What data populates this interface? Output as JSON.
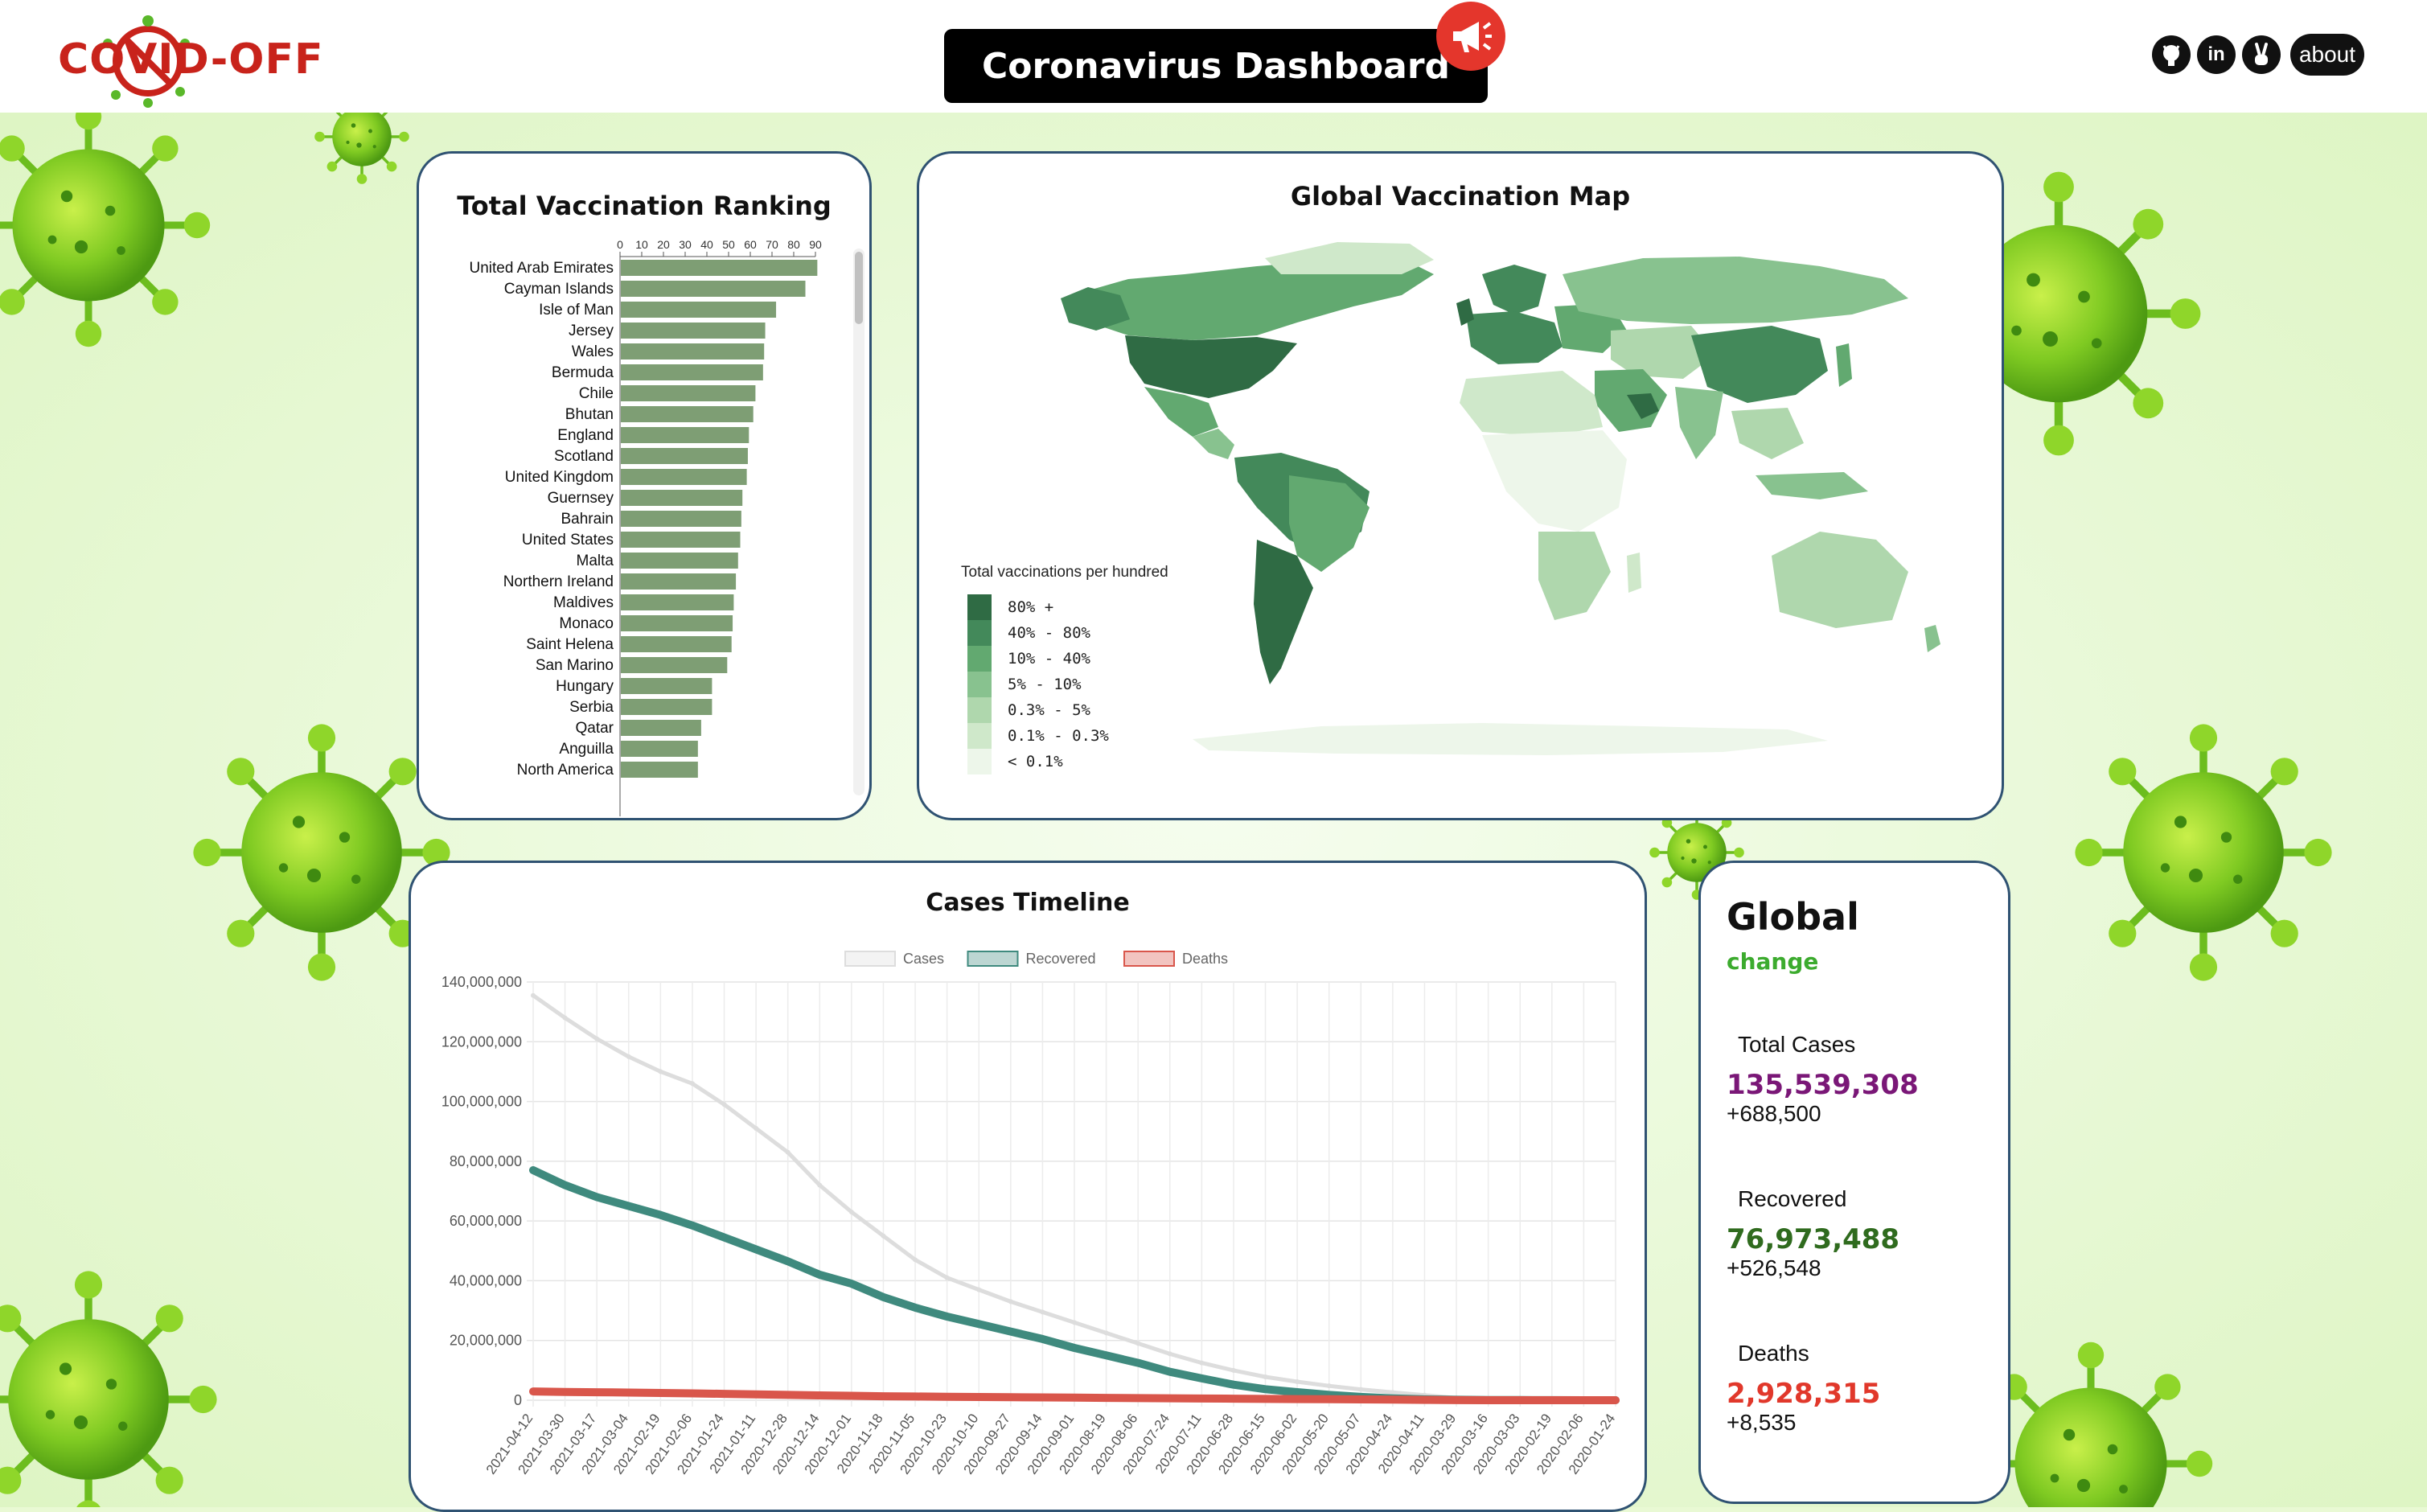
{
  "header": {
    "logo_text": "COVID-OFF",
    "title": "Coronavirus Dashboard",
    "icons": [
      "github-icon",
      "linkedin-icon",
      "peace-hand-icon"
    ],
    "linkedin_label": "in",
    "about_label": "about"
  },
  "ranking": {
    "title": "Total Vaccination Ranking",
    "axis_ticks": [
      "0",
      "10",
      "20",
      "30",
      "40",
      "50",
      "60",
      "70",
      "80",
      "90"
    ],
    "bar_color": "#7e9e74",
    "items": [
      {
        "label": "United Arab Emirates",
        "value": 90.5
      },
      {
        "label": "Cayman Islands",
        "value": 85
      },
      {
        "label": "Isle of Man",
        "value": 71.5
      },
      {
        "label": "Jersey",
        "value": 66.5
      },
      {
        "label": "Wales",
        "value": 66
      },
      {
        "label": "Bermuda",
        "value": 65.5
      },
      {
        "label": "Chile",
        "value": 62
      },
      {
        "label": "Bhutan",
        "value": 61
      },
      {
        "label": "England",
        "value": 59
      },
      {
        "label": "Scotland",
        "value": 58.5
      },
      {
        "label": "United Kingdom",
        "value": 58
      },
      {
        "label": "Guernsey",
        "value": 56
      },
      {
        "label": "Bahrain",
        "value": 55.5
      },
      {
        "label": "United States",
        "value": 55
      },
      {
        "label": "Malta",
        "value": 54
      },
      {
        "label": "Northern Ireland",
        "value": 53
      },
      {
        "label": "Maldives",
        "value": 52
      },
      {
        "label": "Monaco",
        "value": 51.5
      },
      {
        "label": "Saint Helena",
        "value": 51
      },
      {
        "label": "San Marino",
        "value": 49
      },
      {
        "label": "Hungary",
        "value": 42
      },
      {
        "label": "Serbia",
        "value": 42
      },
      {
        "label": "Qatar",
        "value": 37
      },
      {
        "label": "Anguilla",
        "value": 35.5
      },
      {
        "label": "North America",
        "value": 35.5
      }
    ]
  },
  "map": {
    "title": "Global Vaccination Map",
    "legend_title": "Total vaccinations per hundred",
    "legend": [
      {
        "label": "80% +",
        "color": "#2f6b44"
      },
      {
        "label": "40% - 80%",
        "color": "#43895a"
      },
      {
        "label": "10% - 40%",
        "color": "#62a970"
      },
      {
        "label": "5% - 10%",
        "color": "#88c28f"
      },
      {
        "label": "0.3% - 5%",
        "color": "#afd7ad"
      },
      {
        "label": "0.1% - 0.3%",
        "color": "#cfe8ca"
      },
      {
        "label": "< 0.1%",
        "color": "#edf6ea"
      }
    ]
  },
  "timeline": {
    "title": "Cases Timeline",
    "chart_data": {
      "type": "line",
      "title": "Cases Timeline",
      "ylim": [
        0,
        140000000
      ],
      "yticks": [
        "140,000,000",
        "120,000,000",
        "100,000,000",
        "80,000,000",
        "60,000,000",
        "40,000,000",
        "20,000,000",
        "0"
      ],
      "x": [
        "2021-04-12",
        "2021-03-30",
        "2021-03-17",
        "2021-03-04",
        "2021-02-19",
        "2021-02-06",
        "2021-01-24",
        "2021-01-11",
        "2020-12-28",
        "2020-12-14",
        "2020-12-01",
        "2020-11-18",
        "2020-11-05",
        "2020-10-23",
        "2020-10-10",
        "2020-09-27",
        "2020-09-14",
        "2020-09-01",
        "2020-08-19",
        "2020-08-06",
        "2020-07-24",
        "2020-07-11",
        "2020-06-28",
        "2020-06-15",
        "2020-06-02",
        "2020-05-20",
        "2020-05-07",
        "2020-04-24",
        "2020-04-11",
        "2020-03-29",
        "2020-03-16",
        "2020-03-03",
        "2020-02-19",
        "2020-02-06",
        "2020-01-24"
      ],
      "series": [
        {
          "name": "Cases",
          "color": "#dddddd",
          "values": [
            135500000,
            128000000,
            121000000,
            115000000,
            110000000,
            106000000,
            99000000,
            91000000,
            83000000,
            72000000,
            63000000,
            55000000,
            47000000,
            41000000,
            37000000,
            33000000,
            29500000,
            26000000,
            22500000,
            19000000,
            15500000,
            12500000,
            10000000,
            7800000,
            6200000,
            4800000,
            3600000,
            2600000,
            1700000,
            700000,
            200000,
            90000,
            75000,
            30000,
            1000
          ]
        },
        {
          "name": "Recovered",
          "color": "#3f8a7e",
          "values": [
            77000000,
            72000000,
            68000000,
            65000000,
            62000000,
            58500000,
            54500000,
            50500000,
            46500000,
            42000000,
            39000000,
            34500000,
            31000000,
            28000000,
            25500000,
            23000000,
            20500000,
            17500000,
            15000000,
            12500000,
            9500000,
            7300000,
            5200000,
            3700000,
            2700000,
            1800000,
            1100000,
            600000,
            300000,
            150000,
            70000,
            45000,
            15000,
            3000,
            0
          ]
        },
        {
          "name": "Deaths",
          "color": "#d9564b",
          "values": [
            2930000,
            2780000,
            2660000,
            2550000,
            2430000,
            2290000,
            2130000,
            1960000,
            1780000,
            1620000,
            1480000,
            1330000,
            1230000,
            1150000,
            1080000,
            1000000,
            930000,
            850000,
            770000,
            700000,
            640000,
            560000,
            500000,
            440000,
            380000,
            330000,
            270000,
            200000,
            110000,
            33000,
            7000,
            3000,
            2000,
            600,
            17
          ]
        }
      ]
    }
  },
  "global": {
    "title": "Global",
    "change_label": "change",
    "stats": [
      {
        "label": "Total Cases",
        "value": "135,539,308",
        "change": "+688,500",
        "color": "#7a1777"
      },
      {
        "label": "Recovered",
        "value": "76,973,488",
        "change": "+526,548",
        "color": "#2f6b1e"
      },
      {
        "label": "Deaths",
        "value": "2,928,315",
        "change": "+8,535",
        "color": "#e1382b"
      }
    ]
  }
}
